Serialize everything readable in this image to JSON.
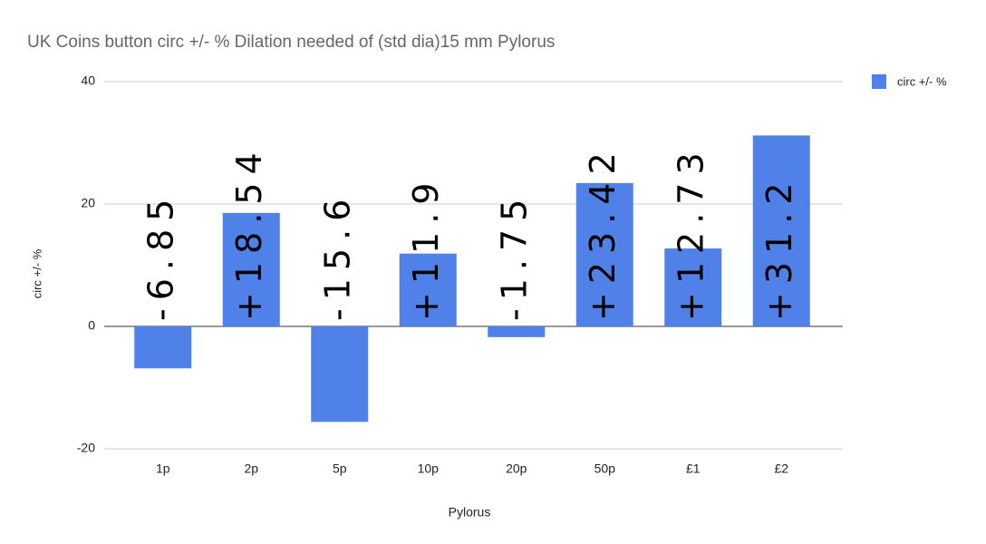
{
  "chart_data": {
    "type": "bar",
    "title": "UK Coins button circ +/- % Dilation needed of (std dia)15 mm Pylorus",
    "x_label": "Pylorus",
    "y_label": "circ +/- %",
    "categories": [
      "1p",
      "2p",
      "5p",
      "10p",
      "20p",
      "50p",
      "£1",
      "£2"
    ],
    "series": [
      {
        "name": "circ +/- %",
        "color": "#4f81e8",
        "values": [
          -6.85,
          18.54,
          -15.6,
          11.9,
          -1.75,
          23.42,
          12.73,
          31.2
        ],
        "value_labels": [
          "-6.85",
          "+18.54",
          "-15.6",
          "+11.9",
          "-1.75",
          "+23.42",
          "+12.73",
          "+31.2"
        ]
      }
    ],
    "ylim": [
      -20,
      40
    ],
    "yticks": [
      -20,
      0,
      20,
      40
    ],
    "grid": true,
    "legend": "right"
  }
}
